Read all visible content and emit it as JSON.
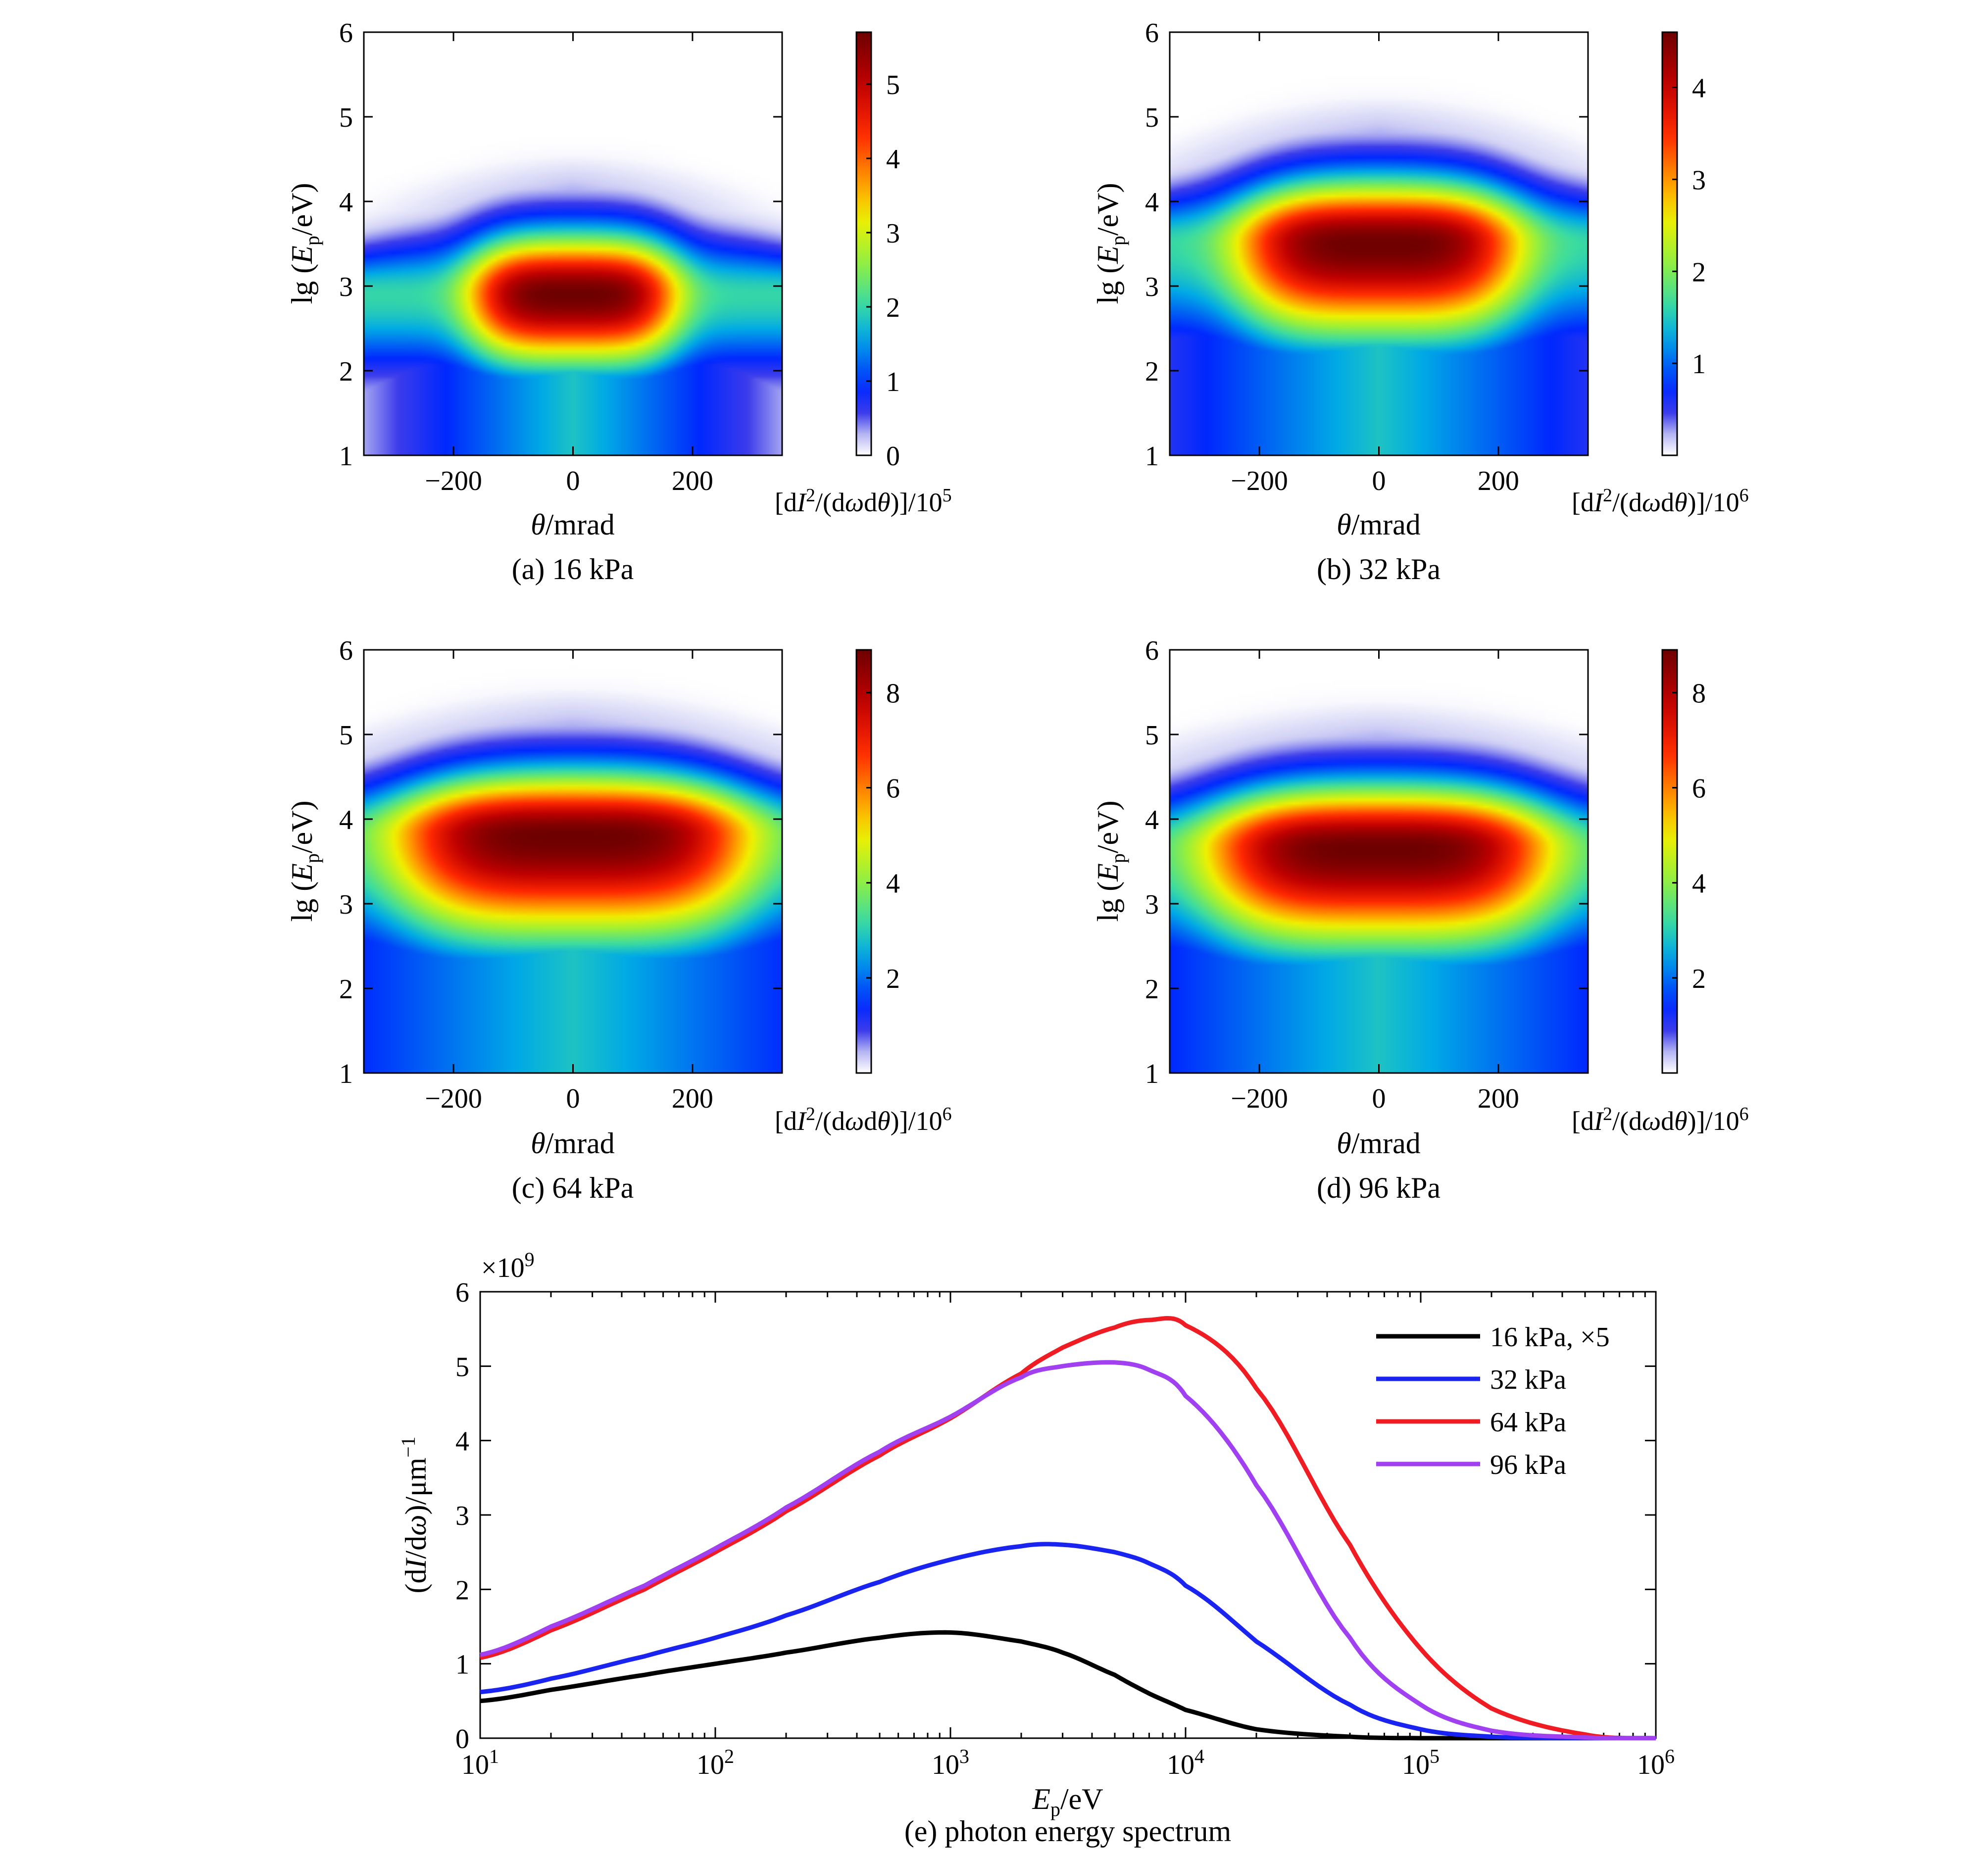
{
  "chart_data": [
    {
      "type": "heatmap",
      "panel": "a",
      "caption": "(a) 16 kPa",
      "xlabel": "θ/mrad",
      "ylabel": "lg (Ep/eV)",
      "xlim": [
        -350,
        350
      ],
      "ylim": [
        1,
        6
      ],
      "xticks": [
        "−200",
        "0",
        "200"
      ],
      "yticks": [
        "1",
        "2",
        "3",
        "4",
        "5",
        "6"
      ],
      "colorbar": {
        "label": "[dI2/(dωdθ)]/105",
        "ticks": [
          "0",
          "1",
          "2",
          "3",
          "4",
          "5"
        ],
        "min": 0,
        "max": 5.7
      },
      "peak": {
        "theta": 0,
        "lgE": 2.9,
        "value": 5.7
      },
      "core_theta_halfwidth": 170,
      "outer_lgE": {
        "center": 4.6,
        "edge": 4.1
      }
    },
    {
      "type": "heatmap",
      "panel": "b",
      "caption": "(b) 32 kPa",
      "xlabel": "θ/mrad",
      "ylabel": "lg (Ep/eV)",
      "xlim": [
        -350,
        350
      ],
      "ylim": [
        1,
        6
      ],
      "xticks": [
        "−200",
        "0",
        "200"
      ],
      "yticks": [
        "1",
        "2",
        "3",
        "4",
        "5",
        "6"
      ],
      "colorbar": {
        "label": "[dI2/(dωdθ)]/106",
        "ticks": [
          "1",
          "2",
          "3",
          "4"
        ],
        "min": 0,
        "max": 4.6
      },
      "peak": {
        "theta": 0,
        "lgE": 3.5,
        "value": 4.6
      },
      "core_theta_halfwidth": 230,
      "outer_lgE": {
        "center": 5.3,
        "edge": 4.8
      }
    },
    {
      "type": "heatmap",
      "panel": "c",
      "caption": "(c) 64 kPa",
      "xlabel": "θ/mrad",
      "ylabel": "lg (Ep/eV)",
      "xlim": [
        -350,
        350
      ],
      "ylim": [
        1,
        6
      ],
      "xticks": [
        "−200",
        "0",
        "200"
      ],
      "yticks": [
        "1",
        "2",
        "3",
        "4",
        "5",
        "6"
      ],
      "colorbar": {
        "label": "[dI2/(dωdθ)]/106",
        "ticks": [
          "2",
          "4",
          "6",
          "8"
        ],
        "min": 0,
        "max": 8.9
      },
      "peak": {
        "theta": 0,
        "lgE": 3.8,
        "value": 8.9
      },
      "core_theta_halfwidth": 290,
      "outer_lgE": {
        "center": 5.6,
        "edge": 5.2
      }
    },
    {
      "type": "heatmap",
      "panel": "d",
      "caption": "(d) 96 kPa",
      "xlabel": "θ/mrad",
      "ylabel": "lg (Ep/eV)",
      "xlim": [
        -350,
        350
      ],
      "ylim": [
        1,
        6
      ],
      "xticks": [
        "−200",
        "0",
        "200"
      ],
      "yticks": [
        "1",
        "2",
        "3",
        "4",
        "5",
        "6"
      ],
      "colorbar": {
        "label": "[dI2/(dωdθ)]/106",
        "ticks": [
          "2",
          "4",
          "6",
          "8"
        ],
        "min": 0,
        "max": 8.9
      },
      "peak": {
        "theta": 0,
        "lgE": 3.65,
        "value": 8.9
      },
      "core_theta_halfwidth": 280,
      "outer_lgE": {
        "center": 5.45,
        "edge": 5.1
      }
    },
    {
      "type": "line",
      "panel": "e",
      "caption": "(e) photon energy spectrum",
      "xlabel": "Ep/eV",
      "ylabel": "(dI/dω)/μm−1",
      "yscale_label": "×109",
      "xscale": "log",
      "xlim": [
        10,
        1000000
      ],
      "ylim": [
        0,
        6
      ],
      "xticks": [
        "101",
        "102",
        "103",
        "104",
        "105",
        "106"
      ],
      "yticks": [
        "0",
        "1",
        "2",
        "3",
        "4",
        "5",
        "6"
      ],
      "legend_position": "top-right",
      "x": [
        10,
        20,
        50,
        100,
        200,
        500,
        1000,
        2000,
        3000,
        5000,
        7000,
        10000,
        20000,
        50000,
        100000,
        200000,
        500000,
        1000000
      ],
      "series": [
        {
          "name": "16 kPa, ×5",
          "color": "#000000",
          "values": [
            0.5,
            0.65,
            0.85,
            1.0,
            1.15,
            1.35,
            1.42,
            1.3,
            1.15,
            0.85,
            0.6,
            0.38,
            0.12,
            0.02,
            0.0,
            0.0,
            0.0,
            0.0
          ]
        },
        {
          "name": "32 kPa",
          "color": "#1a24f0",
          "values": [
            0.62,
            0.8,
            1.1,
            1.35,
            1.65,
            2.1,
            2.4,
            2.58,
            2.6,
            2.5,
            2.35,
            2.05,
            1.3,
            0.45,
            0.12,
            0.02,
            0.0,
            0.0
          ]
        },
        {
          "name": "64 kPa",
          "color": "#f01c24",
          "values": [
            1.08,
            1.45,
            2.0,
            2.5,
            3.05,
            3.8,
            4.3,
            4.9,
            5.25,
            5.52,
            5.62,
            5.55,
            4.7,
            2.6,
            1.2,
            0.4,
            0.05,
            0.0
          ]
        },
        {
          "name": "96 kPa",
          "color": "#a040f0",
          "values": [
            1.12,
            1.5,
            2.05,
            2.55,
            3.1,
            3.85,
            4.32,
            4.85,
            5.0,
            5.05,
            4.95,
            4.6,
            3.4,
            1.35,
            0.45,
            0.1,
            0.01,
            0.0
          ]
        }
      ]
    }
  ]
}
